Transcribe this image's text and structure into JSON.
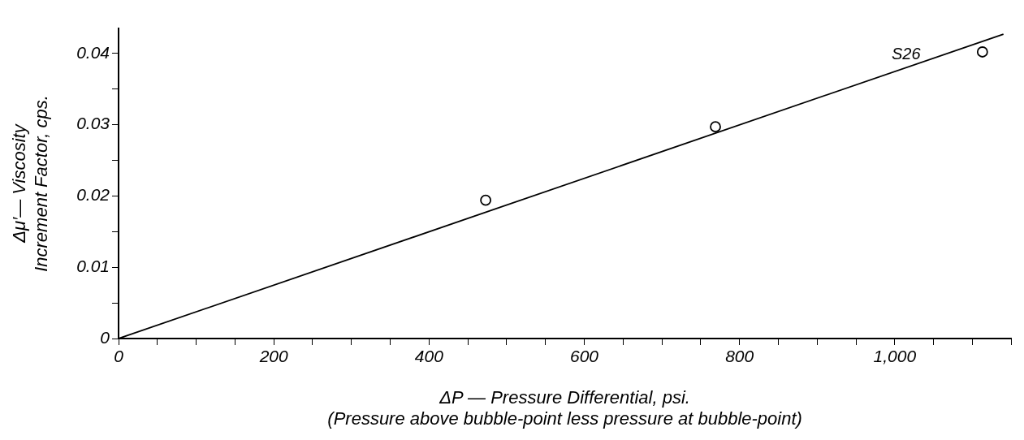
{
  "chart_data": {
    "type": "scatter",
    "xlabel": "ΔP — Pressure Differential, psi.\n(Pressure above bubble-point less pressure at bubble-point)",
    "ylabel": "Δμ′— Viscosity\nIncrement Factor, cps.",
    "series": [
      {
        "type": "scatter",
        "color": "#000000",
        "x": [
          473,
          769,
          1113
        ],
        "values": [
          0.0194,
          0.0297,
          0.0402
        ],
        "marker": "circle"
      },
      {
        "type": "line",
        "name": "S26",
        "color": "#000000",
        "x": [
          0,
          1140
        ],
        "values": [
          0,
          0.0427
        ],
        "marker": "none",
        "line_style": "solid"
      }
    ],
    "xlim": [
      0,
      1150
    ],
    "xticks": [
      0,
      {
        "value": 50,
        "label": null
      },
      {
        "value": 100,
        "label": null
      },
      {
        "value": 150,
        "label": null
      },
      200,
      {
        "value": 250,
        "label": null
      },
      {
        "value": 300,
        "label": null
      },
      {
        "value": 350,
        "label": null
      },
      400,
      {
        "value": 450,
        "label": null
      },
      {
        "value": 500,
        "label": null
      },
      {
        "value": 550,
        "label": null
      },
      600,
      {
        "value": 650,
        "label": null
      },
      {
        "value": 700,
        "label": null
      },
      {
        "value": 750,
        "label": null
      },
      800,
      {
        "value": 850,
        "label": null
      },
      {
        "value": 900,
        "label": null
      },
      {
        "value": 950,
        "label": null
      },
      {
        "value": 1000,
        "label": "1,000"
      },
      {
        "value": 1050,
        "label": null
      },
      {
        "value": 1100,
        "label": null
      },
      {
        "value": 1150,
        "label": null
      }
    ],
    "ylim": [
      0,
      0.0435
    ],
    "yticks": [
      0,
      {
        "value": 0.005,
        "label": null
      },
      0.01,
      {
        "value": 0.015,
        "label": null
      },
      0.02,
      {
        "value": 0.025,
        "label": null
      },
      0.03,
      {
        "value": 0.035,
        "label": null
      },
      0.04
    ],
    "grid": false,
    "legend": false
  }
}
